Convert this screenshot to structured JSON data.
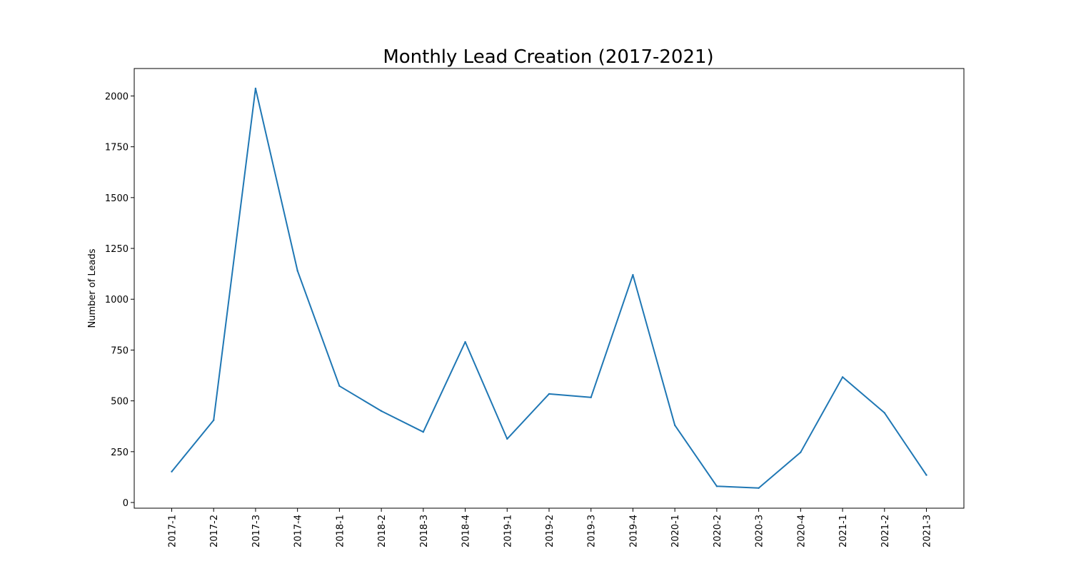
{
  "chart_data": {
    "type": "line",
    "title": "Monthly Lead Creation (2017-2021)",
    "xlabel": "",
    "ylabel": "Number of Leads",
    "categories": [
      "2017-1",
      "2017-2",
      "2017-3",
      "2017-4",
      "2018-1",
      "2018-2",
      "2018-3",
      "2018-4",
      "2019-1",
      "2019-2",
      "2019-3",
      "2019-4",
      "2020-1",
      "2020-2",
      "2020-3",
      "2020-4",
      "2021-1",
      "2021-2",
      "2021-3"
    ],
    "series": [
      {
        "values": [
          152,
          405,
          2037,
          1140,
          573,
          450,
          347,
          790,
          313,
          534,
          517,
          1120,
          380,
          80,
          71,
          247,
          617,
          441,
          135
        ]
      }
    ],
    "yticks": [
      0,
      250,
      500,
      750,
      1000,
      1250,
      1500,
      1750,
      2000
    ],
    "ylim": [
      -28,
      2135
    ],
    "grid": false,
    "line_color": "#1f77b4"
  }
}
